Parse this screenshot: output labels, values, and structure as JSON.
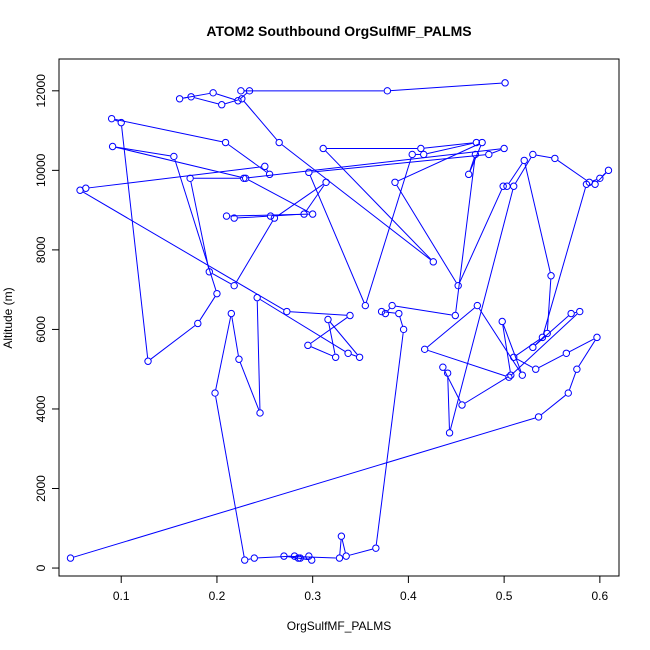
{
  "chart_data": {
    "type": "line",
    "title": "ATOM2 Southbound OrgSulfMF_PALMS",
    "xlabel": "OrgSulfMF_PALMS",
    "ylabel": "Altitude (m)",
    "xlim": [
      0.035,
      0.62
    ],
    "ylim": [
      -200,
      12800
    ],
    "xticks": [
      0.1,
      0.2,
      0.3,
      0.4,
      0.5,
      0.6
    ],
    "xtick_labels": [
      "0.1",
      "0.2",
      "0.3",
      "0.4",
      "0.5",
      "0.6"
    ],
    "yticks": [
      0,
      2000,
      4000,
      6000,
      8000,
      10000,
      12000
    ],
    "ytick_labels": [
      "0",
      "2000",
      "4000",
      "6000",
      "8000",
      "10000",
      "12000"
    ],
    "grid": false,
    "legend": "none",
    "color": "#0000ff",
    "series": [
      {
        "x": [
          0.501,
          0.378,
          0.225,
          0.234,
          0.222,
          0.196,
          0.161,
          0.173,
          0.205,
          0.226,
          0.265,
          0.426,
          0.311,
          0.413,
          0.471,
          0.416,
          0.404,
          0.355,
          0.296,
          0.484,
          0.5,
          0.228,
          0.172,
          0.192,
          0.218,
          0.26,
          0.314,
          0.291,
          0.256,
          0.218,
          0.21,
          0.3,
          0.23,
          0.091,
          0.155,
          0.2,
          0.18,
          0.128,
          0.1,
          0.09,
          0.209,
          0.255,
          0.25,
          0.063,
          0.057,
          0.273,
          0.339,
          0.295,
          0.324,
          0.316,
          0.349,
          0.337,
          0.242,
          0.245,
          0.223,
          0.215,
          0.198,
          0.229,
          0.239,
          0.281,
          0.285,
          0.296,
          0.287,
          0.299,
          0.27,
          0.328,
          0.33,
          0.335,
          0.366,
          0.395,
          0.39,
          0.372,
          0.376,
          0.383,
          0.449,
          0.47,
          0.463,
          0.477,
          0.386,
          0.452,
          0.499,
          0.503,
          0.521,
          0.549,
          0.545,
          0.53,
          0.57,
          0.579,
          0.505,
          0.417,
          0.472,
          0.519,
          0.498,
          0.507,
          0.456,
          0.436,
          0.441,
          0.443,
          0.51,
          0.53,
          0.553,
          0.589,
          0.6,
          0.609,
          0.595,
          0.586,
          0.54,
          0.51,
          0.533,
          0.565,
          0.597,
          0.576,
          0.567,
          0.536,
          0.047
        ],
        "y": [
          12200,
          12000,
          12000,
          12000,
          11750,
          11950,
          11800,
          11850,
          11650,
          11800,
          10700,
          7700,
          10550,
          10550,
          10700,
          10400,
          10400,
          6600,
          9950,
          10400,
          10550,
          9800,
          9800,
          7450,
          7100,
          8800,
          9700,
          8900,
          8850,
          8800,
          8850,
          8900,
          9800,
          10600,
          10350,
          6900,
          6150,
          5200,
          11200,
          11300,
          10700,
          9900,
          10100,
          9550,
          9500,
          6450,
          6350,
          5600,
          5300,
          6250,
          5300,
          5400,
          6800,
          3900,
          5250,
          6400,
          4400,
          200,
          250,
          300,
          250,
          300,
          250,
          200,
          300,
          250,
          800,
          300,
          500,
          6000,
          6400,
          6450,
          6400,
          6600,
          6350,
          10400,
          9900,
          10700,
          9700,
          7100,
          9600,
          9600,
          10250,
          7350,
          5900,
          5550,
          6400,
          6450,
          4800,
          5500,
          6600,
          4850,
          6200,
          4850,
          4100,
          5050,
          4900,
          3400,
          9600,
          10400,
          10300,
          9700,
          9800,
          10000,
          9650,
          9650,
          5800,
          5300,
          5000,
          5400,
          5800,
          5000,
          4400,
          3800,
          250
        ]
      }
    ]
  }
}
